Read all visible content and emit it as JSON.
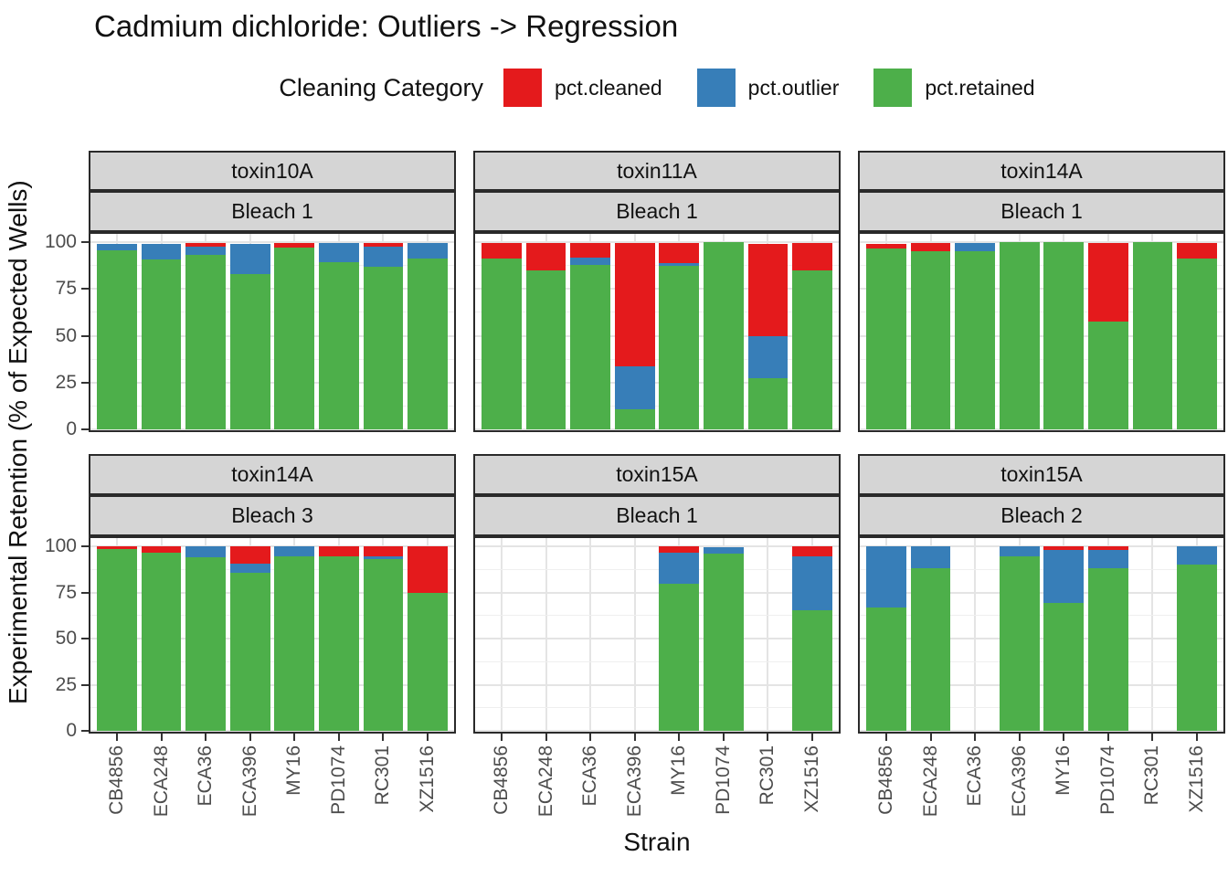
{
  "title": "Cadmium dichloride: Outliers -> Regression",
  "legend": {
    "title": "Cleaning Category",
    "items": [
      {
        "label": "pct.cleaned",
        "color": "#E41A1C"
      },
      {
        "label": "pct.outlier",
        "color": "#377EB8"
      },
      {
        "label": "pct.retained",
        "color": "#4DAF4A"
      }
    ]
  },
  "chart_data": {
    "type": "bar",
    "stacked": true,
    "title": "Cadmium dichloride: Outliers -> Regression",
    "xlabel": "Strain",
    "ylabel": "Experimental Retention (% of Expected Wells)",
    "ylim": [
      0,
      100
    ],
    "yticks": [
      0,
      25,
      50,
      75,
      100
    ],
    "yticks_minor": [
      12.5,
      37.5,
      62.5,
      87.5
    ],
    "grid": "on",
    "legend_position": "top",
    "categories": [
      "CB4856",
      "ECA248",
      "ECA36",
      "ECA396",
      "MY16",
      "PD1074",
      "RC301",
      "XZ1516"
    ],
    "series_colors": {
      "pct.cleaned": "#E41A1C",
      "pct.outlier": "#377EB8",
      "pct.retained": "#4DAF4A"
    },
    "stack_order_bottom_to_top": [
      "pct.retained",
      "pct.outlier",
      "pct.cleaned"
    ],
    "facets": [
      {
        "toxin": "toxin10A",
        "bleach": "Bleach 1",
        "series": {
          "pct.cleaned": [
            0,
            0,
            2,
            0,
            2.5,
            0,
            2,
            0
          ],
          "pct.outlier": [
            3.5,
            8,
            4.5,
            16,
            0,
            10,
            10.5,
            8.5
          ],
          "pct.retained": [
            95.5,
            91,
            93,
            83,
            97,
            89.5,
            87,
            91
          ]
        }
      },
      {
        "toxin": "toxin11A",
        "bleach": "Bleach 1",
        "series": {
          "pct.cleaned": [
            8.5,
            14.5,
            8,
            66,
            10.5,
            0,
            49,
            14.5
          ],
          "pct.outlier": [
            0,
            0,
            3.5,
            23,
            1.5,
            0,
            22.5,
            0
          ],
          "pct.retained": [
            91,
            85,
            88,
            10.5,
            87.5,
            100,
            27.5,
            85
          ]
        }
      },
      {
        "toxin": "toxin14A",
        "bleach": "Bleach 1",
        "series": {
          "pct.cleaned": [
            2.5,
            4.5,
            0,
            0,
            0,
            42,
            0,
            8.5
          ],
          "pct.outlier": [
            0,
            0,
            4.5,
            0,
            0,
            0,
            0,
            0
          ],
          "pct.retained": [
            96.5,
            95,
            95,
            100,
            100,
            57.5,
            100,
            91
          ]
        }
      },
      {
        "toxin": "toxin14A",
        "bleach": "Bleach 3",
        "series": {
          "pct.cleaned": [
            1.5,
            3.5,
            0,
            9.5,
            0,
            5.5,
            5.5,
            25
          ],
          "pct.outlier": [
            0,
            0,
            6,
            5,
            5.5,
            0,
            1.5,
            0
          ],
          "pct.retained": [
            98.5,
            96.5,
            94,
            85.5,
            94.5,
            94.5,
            93,
            75
          ]
        }
      },
      {
        "toxin": "toxin15A",
        "bleach": "Bleach 1",
        "series": {
          "pct.cleaned": [
            null,
            null,
            null,
            null,
            3.5,
            0,
            null,
            5.5
          ],
          "pct.outlier": [
            null,
            null,
            null,
            null,
            17,
            3.5,
            null,
            29
          ],
          "pct.retained": [
            null,
            null,
            null,
            null,
            79.5,
            96,
            null,
            65.5
          ]
        }
      },
      {
        "toxin": "toxin15A",
        "bleach": "Bleach 2",
        "series": {
          "pct.cleaned": [
            0,
            0,
            null,
            0,
            2,
            2,
            null,
            0
          ],
          "pct.outlier": [
            33,
            12,
            null,
            5.5,
            28.5,
            10,
            null,
            10
          ],
          "pct.retained": [
            67,
            88,
            null,
            94.5,
            69.5,
            88,
            null,
            90
          ]
        }
      }
    ]
  },
  "colors": {
    "panel_border": "#2A2A2A",
    "strip_fill": "#D5D5D5",
    "grid_major": "#E4E4E4",
    "grid_minor": "#EFEFEF",
    "tick": "#333333",
    "tick_text": "#4D4D4D"
  }
}
